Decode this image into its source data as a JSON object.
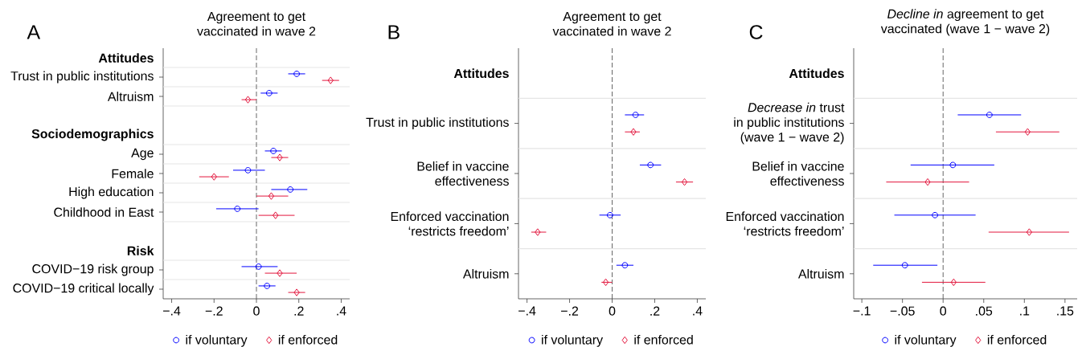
{
  "chart_data": [
    {
      "type": "scatter",
      "orientation": "horizontal",
      "title": "Agreement to get\nvaccinated in wave 2",
      "annotations": [
        "A"
      ],
      "categories": [
        "Attitudes",
        "Trust in public institutions",
        "Altruism",
        null,
        "Sociodemographics",
        "Age",
        "Female",
        "High education",
        "Childhood in East",
        null,
        "Risk",
        "COVID−19 risk group",
        "COVID−19 critical locally"
      ],
      "series": [
        {
          "name": "if voluntary",
          "color": "#0000ff",
          "marker": "circle",
          "values": [
            null,
            0.19,
            0.06,
            null,
            null,
            0.08,
            -0.04,
            0.16,
            -0.09,
            null,
            null,
            0.01,
            0.05
          ],
          "errors": [
            null,
            [
              0.15,
              0.23
            ],
            [
              0.02,
              0.1
            ],
            null,
            null,
            [
              0.04,
              0.12
            ],
            [
              -0.11,
              0.04
            ],
            [
              0.07,
              0.24
            ],
            [
              -0.19,
              0.01
            ],
            null,
            null,
            [
              -0.07,
              0.1
            ],
            [
              0.01,
              0.09
            ]
          ]
        },
        {
          "name": "if enforced",
          "color": "#e3163d",
          "marker": "diamond",
          "values": [
            null,
            0.35,
            -0.04,
            null,
            null,
            0.11,
            -0.2,
            0.07,
            0.09,
            null,
            null,
            0.11,
            0.19
          ],
          "errors": [
            null,
            [
              0.31,
              0.39
            ],
            [
              -0.07,
              0.0
            ],
            null,
            null,
            [
              0.07,
              0.15
            ],
            [
              -0.27,
              -0.13
            ],
            [
              0.0,
              0.15
            ],
            [
              0.01,
              0.18
            ],
            null,
            null,
            [
              0.04,
              0.19
            ],
            [
              0.15,
              0.23
            ]
          ]
        }
      ],
      "xlim": [
        -0.44,
        0.44
      ],
      "xticks": [
        {
          "value": -0.4,
          "label": "−.4"
        },
        {
          "value": -0.2,
          "label": "−.2"
        },
        0,
        {
          "value": 0.2,
          "label": ".2"
        },
        {
          "value": 0.4,
          "label": ".4"
        }
      ],
      "grid": "y",
      "legend": "bottom",
      "ref_lines": [
        {
          "axis": "x",
          "value": 0,
          "color": "#555555",
          "line_style": "dashed"
        }
      ]
    },
    {
      "type": "scatter",
      "orientation": "horizontal",
      "title": "Agreement to get\nvaccinated in wave 2",
      "annotations": [
        "B"
      ],
      "categories": [
        "Attitudes",
        "Trust in public institutions",
        "Belief in vaccine\neffectiveness",
        "Enforced vaccination\n‘restricts freedom’",
        "Altruism"
      ],
      "series": [
        {
          "name": "if voluntary",
          "color": "#0000ff",
          "marker": "circle",
          "values": [
            null,
            0.11,
            0.18,
            -0.01,
            0.06
          ],
          "errors": [
            null,
            [
              0.06,
              0.15
            ],
            [
              0.13,
              0.23
            ],
            [
              -0.06,
              0.04
            ],
            [
              0.02,
              0.1
            ]
          ]
        },
        {
          "name": "if enforced",
          "color": "#e3163d",
          "marker": "diamond",
          "values": [
            null,
            0.1,
            0.34,
            -0.35,
            -0.03
          ],
          "errors": [
            null,
            [
              0.06,
              0.13
            ],
            [
              0.3,
              0.38
            ],
            [
              -0.38,
              -0.31
            ],
            [
              -0.05,
              0.0
            ]
          ]
        }
      ],
      "xlim": [
        -0.44,
        0.44
      ],
      "xticks": [
        {
          "value": -0.4,
          "label": "−.4"
        },
        {
          "value": -0.2,
          "label": "−.2"
        },
        0,
        {
          "value": 0.2,
          "label": ".2"
        },
        {
          "value": 0.4,
          "label": ".4"
        }
      ],
      "grid": "y",
      "legend": "bottom",
      "ref_lines": [
        {
          "axis": "x",
          "value": 0,
          "color": "#555555",
          "line_style": "dashed"
        }
      ]
    },
    {
      "type": "scatter",
      "orientation": "horizontal",
      "title": "*Decline in* agreement to get\nvaccinated (wave 1 − wave 2)",
      "annotations": [
        "C"
      ],
      "categories": [
        "Attitudes",
        "*Decrease in* trust\nin public institutions\n(wave 1 − wave 2)",
        "Belief in vaccine\neffectiveness",
        "Enforced vaccination\n‘restricts freedom’",
        "Altruism"
      ],
      "series": [
        {
          "name": "if voluntary",
          "color": "#0000ff",
          "marker": "circle",
          "values": [
            null,
            0.057,
            0.012,
            -0.01,
            -0.047
          ],
          "errors": [
            null,
            [
              0.018,
              0.096
            ],
            [
              -0.04,
              0.063
            ],
            [
              -0.06,
              0.04
            ],
            [
              -0.086,
              -0.007
            ]
          ]
        },
        {
          "name": "if enforced",
          "color": "#e3163d",
          "marker": "diamond",
          "values": [
            null,
            0.104,
            -0.019,
            0.106,
            0.013
          ],
          "errors": [
            null,
            [
              0.065,
              0.143
            ],
            [
              -0.07,
              0.032
            ],
            [
              0.056,
              0.155
            ],
            [
              -0.026,
              0.052
            ]
          ]
        }
      ],
      "xlim": [
        -0.11,
        0.165
      ],
      "xticks": [
        {
          "value": -0.1,
          "label": "−.1"
        },
        {
          "value": -0.05,
          "label": "−.05"
        },
        0,
        {
          "value": 0.05,
          "label": ".05"
        },
        {
          "value": 0.1,
          "label": ".1"
        },
        {
          "value": 0.15,
          "label": ".15"
        }
      ],
      "grid": "y",
      "legend": "bottom",
      "ref_lines": [
        {
          "axis": "x",
          "value": 0,
          "color": "#555555",
          "line_style": "dashed"
        }
      ]
    }
  ]
}
